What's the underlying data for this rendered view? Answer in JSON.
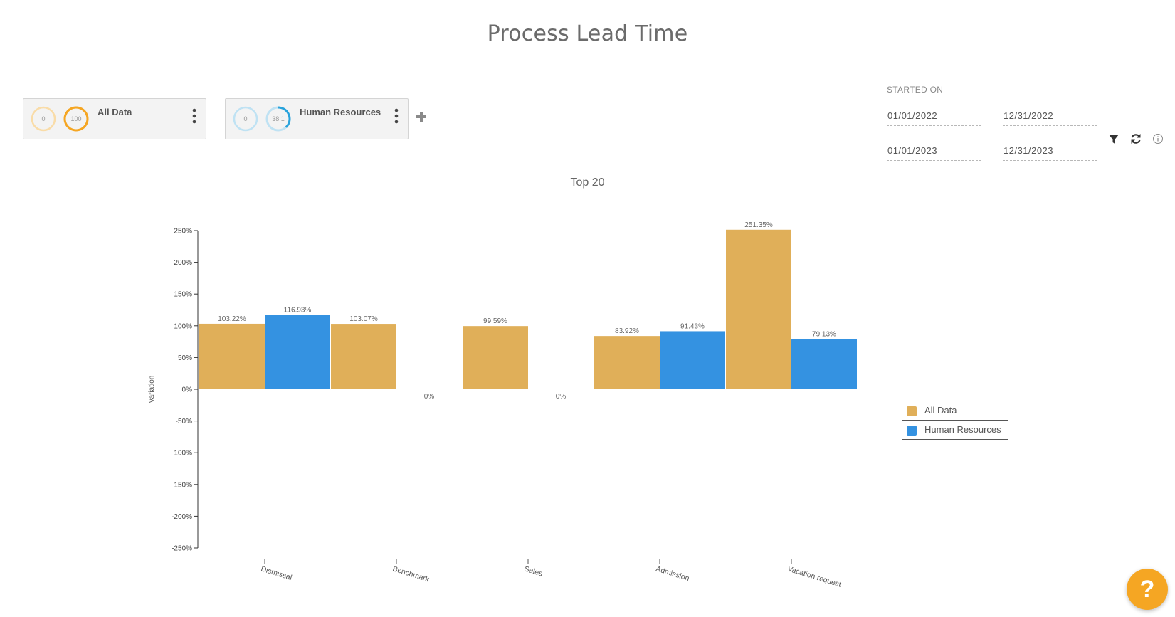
{
  "page": {
    "title": "Process Lead Time"
  },
  "cards": [
    {
      "label": "All Data",
      "ring_min": "0",
      "ring_max": "100",
      "ring_fraction": 1.0,
      "color": "#f5a623",
      "faded_color": "#f9dca8"
    },
    {
      "label": "Human Resources",
      "ring_min": "0",
      "ring_max": "38.1",
      "ring_fraction": 0.381,
      "color": "#29a3dc",
      "faded_color": "#bfe2f3"
    }
  ],
  "add_icon": "plus-icon",
  "filters": {
    "label": "STARTED ON",
    "ranges": [
      {
        "from": "01/01/2022",
        "to": "12/31/2022"
      },
      {
        "from": "01/01/2023",
        "to": "12/31/2023"
      }
    ]
  },
  "tools": [
    "filter-icon",
    "refresh-icon",
    "info-icon"
  ],
  "help_label": "?",
  "chart_data": {
    "type": "bar",
    "title": "Top 20",
    "xlabel": "",
    "ylabel": "Variation",
    "ylim": [
      -250,
      250
    ],
    "yticks": [
      250,
      200,
      150,
      100,
      50,
      0,
      -50,
      -100,
      -150,
      -200,
      -250
    ],
    "ytick_suffix": "%",
    "categories": [
      "Dismissal",
      "Benchmark",
      "Sales",
      "Admission",
      "Vacation request"
    ],
    "series": [
      {
        "name": "All Data",
        "color": "#e0af59",
        "values": [
          103.22,
          103.07,
          99.59,
          83.92,
          251.35
        ]
      },
      {
        "name": "Human Resources",
        "color": "#3492e1",
        "values": [
          116.93,
          0,
          0,
          91.43,
          79.13
        ]
      }
    ],
    "data_labels": [
      [
        "103.22%",
        "103.07%",
        "99.59%",
        "83.92%",
        "251.35%"
      ],
      [
        "116.93%",
        "0%",
        "0%",
        "91.43%",
        "79.13%"
      ]
    ],
    "grid": false,
    "legend_position": "right"
  }
}
